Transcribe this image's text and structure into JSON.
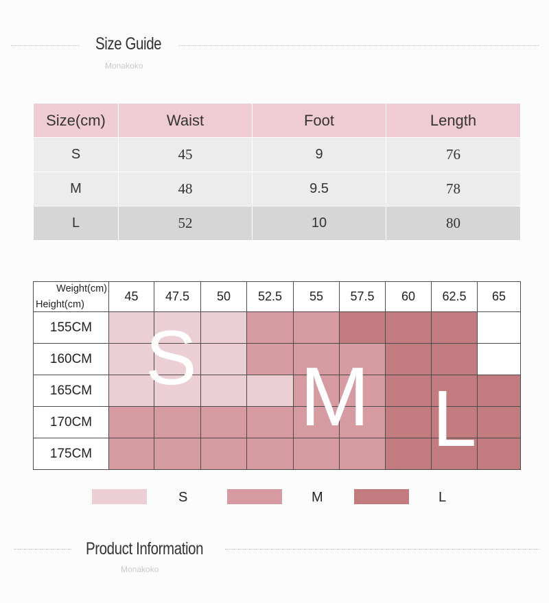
{
  "size_guide": {
    "title": "Size Guide",
    "subtitle": "Monakoko"
  },
  "size_table": {
    "headers": [
      "Size(cm)",
      "Waist",
      "Foot",
      "Length"
    ],
    "rows": [
      {
        "size": "S",
        "waist": "45",
        "foot": "9",
        "length": "76"
      },
      {
        "size": "M",
        "waist": "48",
        "foot": "9.5",
        "length": "78"
      },
      {
        "size": "L",
        "waist": "52",
        "foot": "10",
        "length": "80"
      }
    ]
  },
  "chart": {
    "weight_label": "Weight(cm)",
    "height_label": "Height(cm)",
    "weights": [
      "45",
      "47.5",
      "50",
      "52.5",
      "55",
      "57.5",
      "60",
      "62.5",
      "65"
    ],
    "heights": [
      "155CM",
      "160CM",
      "165CM",
      "170CM",
      "175CM"
    ],
    "grid": [
      [
        "S",
        "S",
        "S",
        "M",
        "M",
        "L",
        "L",
        "L",
        "none"
      ],
      [
        "S",
        "S",
        "S",
        "M",
        "M",
        "M",
        "L",
        "L",
        "none"
      ],
      [
        "S",
        "S",
        "S",
        "S",
        "M",
        "M",
        "L",
        "L",
        "L"
      ],
      [
        "M",
        "M",
        "M",
        "M",
        "M",
        "M",
        "L",
        "L",
        "L"
      ],
      [
        "M",
        "M",
        "M",
        "M",
        "M",
        "M",
        "L",
        "L",
        "L"
      ]
    ],
    "overlay_letters": [
      "S",
      "M",
      "L"
    ],
    "colors": {
      "S": "#eccfd5",
      "M": "#d59ba0",
      "L": "#c27c80",
      "none": "#ffffff"
    }
  },
  "legend": [
    {
      "label": "S",
      "color": "#eccfd5"
    },
    {
      "label": "M",
      "color": "#d59ba0"
    },
    {
      "label": "L",
      "color": "#c27c80"
    }
  ],
  "product_info": {
    "title": "Product Information",
    "subtitle": "Monakoko"
  }
}
